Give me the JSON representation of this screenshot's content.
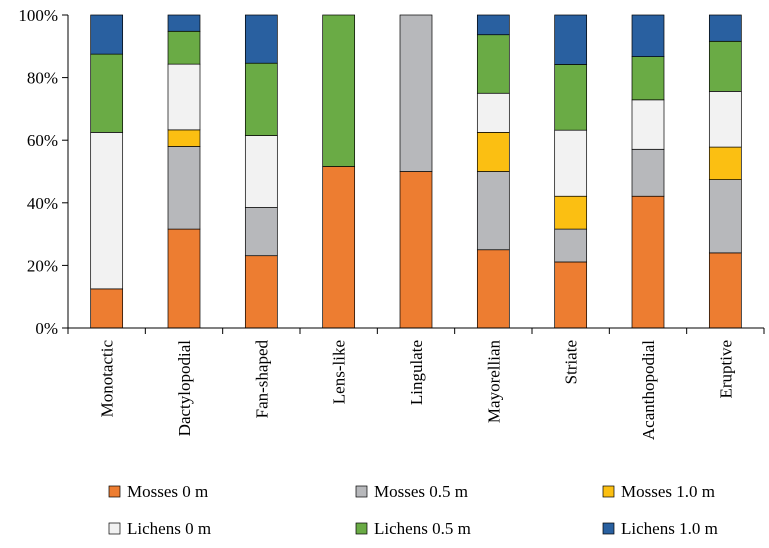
{
  "chart_data": {
    "type": "bar",
    "stacked": true,
    "title": "",
    "xlabel": "",
    "ylabel": "",
    "ylim": [
      0,
      100
    ],
    "ytick_labels": [
      "0%",
      "20%",
      "40%",
      "60%",
      "80%",
      "100%"
    ],
    "ytick_values": [
      0,
      20,
      40,
      60,
      80,
      100
    ],
    "grid": false,
    "legend_position": "bottom",
    "categories": [
      "Monotactic",
      "Dactylopodial",
      "Fan-shaped",
      "Lens-like",
      "Lingulate",
      "Mayorellian",
      "Striate",
      "Acanthopodial",
      "Eruptive"
    ],
    "series": [
      {
        "name": "Mosses 0 m",
        "color": "#ed7d31",
        "values": [
          12.5,
          31.6,
          23.1,
          51.6,
          50.0,
          25.0,
          21.1,
          42.1,
          24.0
        ]
      },
      {
        "name": "Mosses 0.5 m",
        "color": "#b7b8bb",
        "values": [
          0.0,
          26.4,
          15.4,
          0.0,
          50.0,
          25.0,
          10.5,
          15.0,
          23.4
        ]
      },
      {
        "name": "Mosses 1.0 m",
        "color": "#fbbf12",
        "values": [
          0.0,
          5.3,
          0.0,
          0.0,
          0.0,
          12.5,
          10.5,
          0.0,
          10.4
        ]
      },
      {
        "name": "Lichens 0 m",
        "color": "#f2f2f2",
        "values": [
          50.0,
          21.0,
          23.0,
          0.0,
          0.0,
          12.5,
          21.1,
          15.8,
          17.8
        ]
      },
      {
        "name": "Lichens 0.5 m",
        "color": "#6aab45",
        "values": [
          25.0,
          10.5,
          23.1,
          48.4,
          0.0,
          18.7,
          21.0,
          13.8,
          16.0
        ]
      },
      {
        "name": "Lichens 1.0 m",
        "color": "#2960a0",
        "values": [
          12.5,
          5.2,
          15.4,
          0.0,
          0.0,
          6.3,
          15.8,
          13.3,
          8.4
        ]
      }
    ]
  }
}
